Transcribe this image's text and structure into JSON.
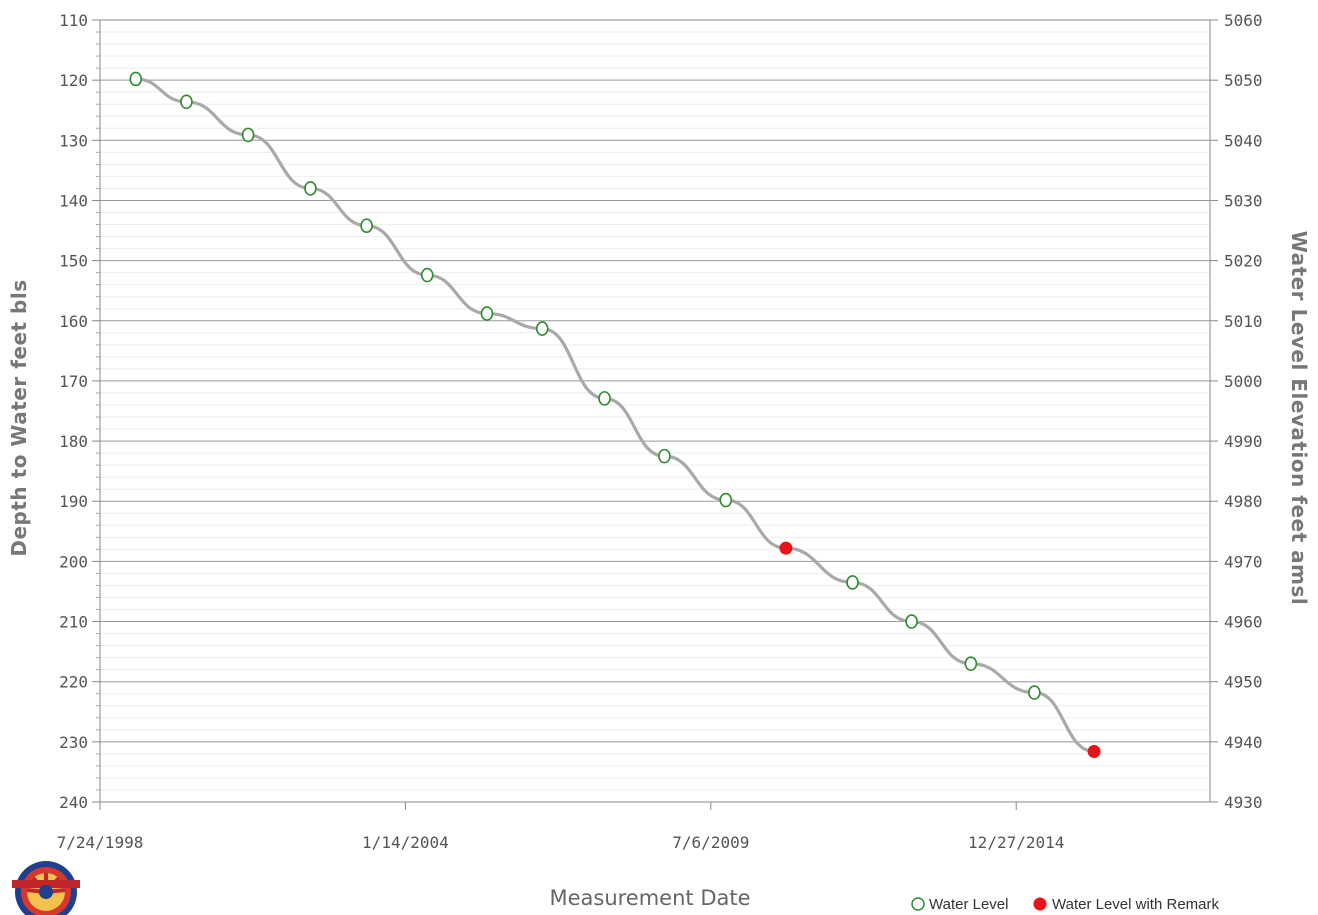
{
  "chart_data": {
    "type": "line",
    "xlabel": "Measurement Date",
    "ylabel": "Depth to Water feet bls",
    "y2label": "Water Level Elevation feet amsl",
    "x_ticks": [
      "7/24/1998",
      "1/14/2004",
      "7/6/2009",
      "12/27/2014"
    ],
    "y_ticks": [
      "110",
      "120",
      "130",
      "140",
      "150",
      "160",
      "170",
      "180",
      "190",
      "200",
      "210",
      "220",
      "230",
      "240"
    ],
    "y2_ticks": [
      "5060",
      "5050",
      "5040",
      "5030",
      "5020",
      "5010",
      "5000",
      "4990",
      "4980",
      "4970",
      "4960",
      "4950",
      "4940",
      "4930"
    ],
    "xlim": [
      "1998-07-24",
      "2018-06-18"
    ],
    "ylim": [
      110,
      240
    ],
    "y_reversed": true,
    "y2lim": [
      5060,
      4930
    ],
    "grid": true,
    "legend_position": "bottom-right",
    "series": [
      {
        "name": "Water Level",
        "marker": "open-circle",
        "color": "#2e8b2e",
        "points": [
          {
            "x": "1999-03-15",
            "y": 119.8
          },
          {
            "x": "2000-02-10",
            "y": 123.6
          },
          {
            "x": "2001-03-20",
            "y": 129.1
          },
          {
            "x": "2002-05-02",
            "y": 138.0
          },
          {
            "x": "2003-05-05",
            "y": 144.2
          },
          {
            "x": "2004-06-05",
            "y": 152.4
          },
          {
            "x": "2005-07-01",
            "y": 158.8
          },
          {
            "x": "2006-06-28",
            "y": 161.3
          },
          {
            "x": "2007-08-10",
            "y": 172.9
          },
          {
            "x": "2008-09-05",
            "y": 182.5
          },
          {
            "x": "2009-10-12",
            "y": 189.8
          },
          {
            "x": "2012-01-20",
            "y": 203.5
          },
          {
            "x": "2013-02-10",
            "y": 210.0
          },
          {
            "x": "2014-03-05",
            "y": 217.0
          },
          {
            "x": "2015-04-25",
            "y": 221.8
          }
        ]
      },
      {
        "name": "Water Level with Remark",
        "marker": "filled-circle",
        "color": "#e8141c",
        "points": [
          {
            "x": "2010-11-10",
            "y": 197.8
          },
          {
            "x": "2016-05-20",
            "y": 231.6
          }
        ]
      }
    ],
    "line_color": "#a9a9a9"
  }
}
